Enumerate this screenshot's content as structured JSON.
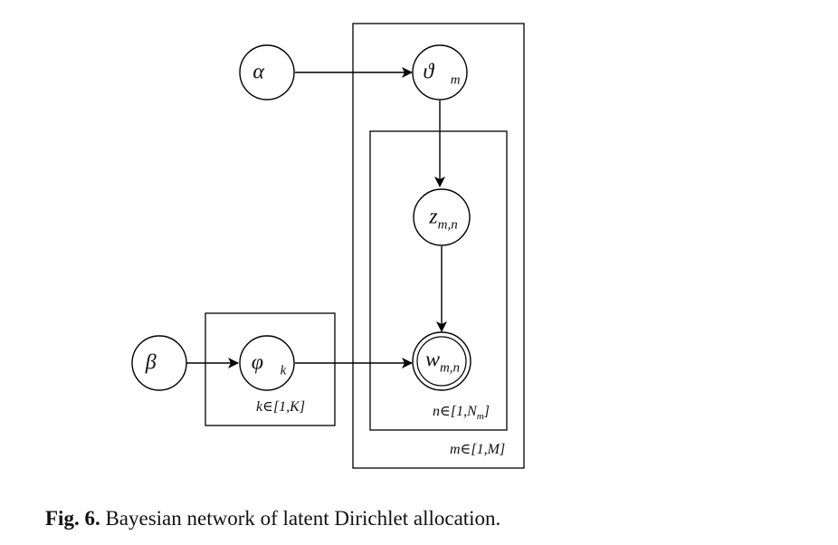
{
  "nodes": {
    "alpha": {
      "base": "α",
      "accent": "⃗",
      "sub": ""
    },
    "theta": {
      "base": "ϑ",
      "accent": "⃗",
      "sub": "m"
    },
    "z": {
      "base": "z",
      "accent": "",
      "sub": "m,n"
    },
    "w": {
      "base": "w",
      "accent": "",
      "sub": "m,n"
    },
    "beta": {
      "base": "β",
      "accent": "⃗",
      "sub": ""
    },
    "phi": {
      "base": "φ",
      "accent": "⃗",
      "sub": "k"
    }
  },
  "plates": {
    "outer_m": "m∈[1,M]",
    "inner_n": "n∈[1,N",
    "inner_n_sub": "m",
    "inner_n_close": "]",
    "topic_k": "k∈[1,K]"
  },
  "caption": {
    "label": "Fig. 6.",
    "text": " Bayesian network of latent Dirichlet allocation."
  }
}
